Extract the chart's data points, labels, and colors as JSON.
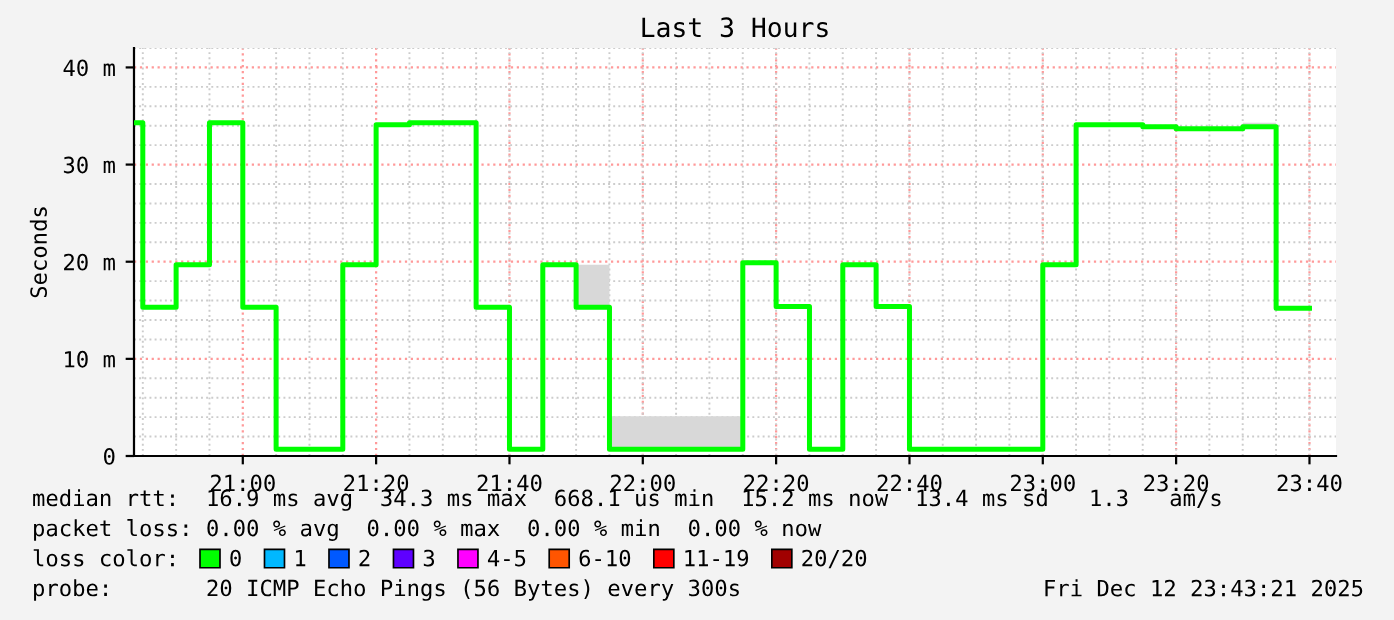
{
  "chart_data": {
    "type": "step",
    "title": "Last 3 Hours",
    "ylabel": "Seconds",
    "x": [
      20.728,
      20.75,
      20.8333,
      20.9167,
      21.0,
      21.0833,
      21.25,
      21.3333,
      21.4167,
      21.5833,
      21.6667,
      21.75,
      21.8333,
      21.9167,
      22.25,
      22.3333,
      22.4167,
      22.5,
      22.5833,
      22.6667,
      23.0,
      23.0833,
      23.25,
      23.3333,
      23.5,
      23.5833,
      23.6667
    ],
    "series": [
      {
        "name": "0",
        "color": "#00ff00",
        "values": [
          34.3,
          15.3,
          19.7,
          34.3,
          15.3,
          0.7,
          19.7,
          34.1,
          34.3,
          15.3,
          0.7,
          19.7,
          15.3,
          0.7,
          19.9,
          15.4,
          0.7,
          19.7,
          15.4,
          0.7,
          19.7,
          34.1,
          33.9,
          33.7,
          33.9,
          15.2,
          15.2
        ],
        "lower": [
          34.3,
          15.3,
          19.7,
          34.3,
          15.3,
          0.7,
          19.7,
          34.1,
          34.3,
          15.3,
          0.7,
          19.7,
          15.3,
          0.7,
          19.9,
          15.4,
          0.7,
          19.7,
          15.4,
          0.7,
          19.7,
          34.1,
          33.9,
          33.7,
          33.9,
          15.2,
          15.2
        ],
        "upper": [
          34.3,
          15.3,
          19.7,
          34.3,
          15.3,
          0.7,
          19.7,
          34.1,
          34.3,
          15.3,
          0.7,
          19.7,
          19.7,
          4.1,
          19.9,
          15.4,
          0.7,
          19.7,
          15.4,
          0.7,
          19.7,
          34.1,
          33.9,
          33.7,
          34.3,
          15.2,
          15.2
        ]
      },
      {
        "name": "1",
        "color": "#00b8ff",
        "values": [
          null,
          null,
          null,
          null,
          null,
          null,
          null,
          null,
          null,
          null,
          null,
          null,
          null,
          null,
          null,
          null,
          null,
          null,
          null,
          null,
          null,
          null,
          null,
          null,
          null,
          null,
          null
        ]
      },
      {
        "name": "2",
        "color": "#0059ff",
        "values": [
          null,
          null,
          null,
          null,
          null,
          null,
          null,
          null,
          null,
          null,
          null,
          null,
          null,
          null,
          null,
          null,
          null,
          null,
          null,
          null,
          null,
          null,
          null,
          null,
          null,
          null,
          null
        ]
      },
      {
        "name": "3",
        "color": "#5e00ff",
        "values": [
          null,
          null,
          null,
          null,
          null,
          null,
          null,
          null,
          null,
          null,
          null,
          null,
          null,
          null,
          null,
          null,
          null,
          null,
          null,
          null,
          null,
          null,
          null,
          null,
          null,
          null,
          null
        ]
      },
      {
        "name": "4-5",
        "color": "#ff00ff",
        "values": [
          null,
          null,
          null,
          null,
          null,
          null,
          null,
          null,
          null,
          null,
          null,
          null,
          null,
          null,
          null,
          null,
          null,
          null,
          null,
          null,
          null,
          null,
          null,
          null,
          null,
          null,
          null
        ]
      },
      {
        "name": "6-10",
        "color": "#ff5500",
        "values": [
          null,
          null,
          null,
          null,
          null,
          null,
          null,
          null,
          null,
          null,
          null,
          null,
          null,
          null,
          null,
          null,
          null,
          null,
          null,
          null,
          null,
          null,
          null,
          null,
          null,
          null,
          null
        ]
      },
      {
        "name": "11-19",
        "color": "#ff0000",
        "values": [
          null,
          null,
          null,
          null,
          null,
          null,
          null,
          null,
          null,
          null,
          null,
          null,
          null,
          null,
          null,
          null,
          null,
          null,
          null,
          null,
          null,
          null,
          null,
          null,
          null,
          null,
          null
        ]
      },
      {
        "name": "20/20",
        "color": "#a10000",
        "values": [
          null,
          null,
          null,
          null,
          null,
          null,
          null,
          null,
          null,
          null,
          null,
          null,
          null,
          null,
          null,
          null,
          null,
          null,
          null,
          null,
          null,
          null,
          null,
          null,
          null,
          null,
          null
        ]
      }
    ],
    "legend_title": "loss color:",
    "legend": "bottom",
    "xlim": [
      20.728,
      23.733
    ],
    "xticks": [
      {
        "value": 21.0,
        "label": "21:00"
      },
      {
        "value": 21.3333,
        "label": "21:20"
      },
      {
        "value": 21.6667,
        "label": "21:40"
      },
      {
        "value": 22.0,
        "label": "22:00"
      },
      {
        "value": 22.3333,
        "label": "22:20"
      },
      {
        "value": 22.6667,
        "label": "22:40"
      },
      {
        "value": 23.0,
        "label": "23:00"
      },
      {
        "value": 23.3333,
        "label": "23:20"
      },
      {
        "value": 23.6667,
        "label": "23:40"
      }
    ],
    "ylim": [
      0,
      42
    ],
    "yticks": [
      0,
      {
        "value": 10,
        "label": "10 m"
      },
      {
        "value": 20,
        "label": "20 m"
      },
      {
        "value": 30,
        "label": "30 m"
      },
      {
        "value": 40,
        "label": "40 m"
      }
    ],
    "grid": true,
    "annotations": [
      "median rtt:  16.9 ms avg  34.3 ms max  668.1 us min  15.2 ms now  13.4 ms sd   1.3   am/s",
      "packet loss: 0.00 % avg  0.00 % max  0.00 % min  0.00 % now",
      "probe:       20 ICMP Echo Pings (56 Bytes) every 300s",
      "Fri Dec 12 23:43:21 2025"
    ]
  }
}
